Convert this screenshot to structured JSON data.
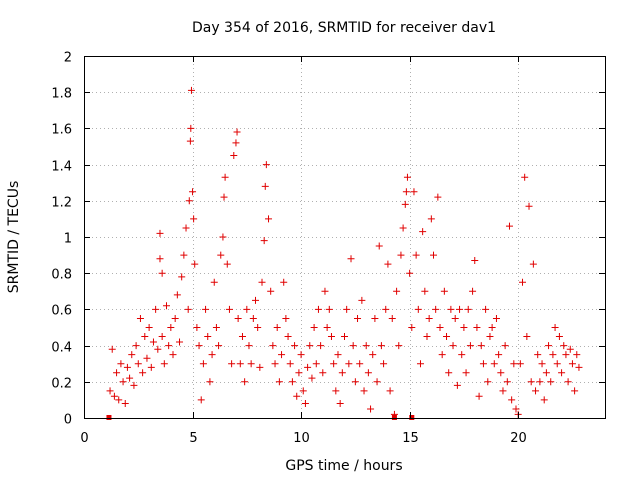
{
  "chart_data": {
    "type": "scatter",
    "title": "Day 354 of 2016, SRMTID for receiver dav1",
    "xlabel": "GPS time / hours",
    "ylabel": "SRMTID / TECUs",
    "xlim": [
      0,
      24
    ],
    "ylim": [
      0,
      2
    ],
    "xticks": [
      0,
      5,
      10,
      15,
      20
    ],
    "yticks": [
      0,
      0.2,
      0.4,
      0.6,
      0.8,
      1,
      1.2,
      1.4,
      1.6,
      1.8,
      2
    ],
    "xtick_labels": [
      "0",
      "5",
      "10",
      "15",
      "20"
    ],
    "ytick_labels": [
      "0",
      "0.2",
      "0.4",
      "0.6",
      "0.8",
      "1",
      "1.2",
      "1.4",
      "1.6",
      "1.8",
      "2"
    ],
    "grid": true,
    "marker": "plus",
    "color": "#e00000",
    "zero_markers": [
      1.15,
      14.3,
      15.1
    ],
    "series": [
      {
        "name": "SRMTID",
        "points": [
          [
            1.2,
            0.15
          ],
          [
            1.3,
            0.38
          ],
          [
            1.4,
            0.12
          ],
          [
            1.5,
            0.25
          ],
          [
            1.6,
            0.1
          ],
          [
            1.7,
            0.3
          ],
          [
            1.8,
            0.2
          ],
          [
            1.9,
            0.08
          ],
          [
            2.0,
            0.28
          ],
          [
            2.1,
            0.22
          ],
          [
            2.2,
            0.35
          ],
          [
            2.3,
            0.18
          ],
          [
            2.4,
            0.4
          ],
          [
            2.5,
            0.3
          ],
          [
            2.6,
            0.55
          ],
          [
            2.7,
            0.25
          ],
          [
            2.8,
            0.45
          ],
          [
            2.9,
            0.33
          ],
          [
            3.0,
            0.5
          ],
          [
            3.1,
            0.28
          ],
          [
            3.2,
            0.42
          ],
          [
            3.3,
            0.6
          ],
          [
            3.4,
            0.38
          ],
          [
            3.5,
            1.02
          ],
          [
            3.5,
            0.88
          ],
          [
            3.6,
            0.8
          ],
          [
            3.6,
            0.45
          ],
          [
            3.7,
            0.3
          ],
          [
            3.8,
            0.62
          ],
          [
            3.9,
            0.4
          ],
          [
            4.0,
            0.5
          ],
          [
            4.1,
            0.35
          ],
          [
            4.2,
            0.55
          ],
          [
            4.3,
            0.68
          ],
          [
            4.4,
            0.42
          ],
          [
            4.5,
            0.78
          ],
          [
            4.6,
            0.9
          ],
          [
            4.7,
            1.05
          ],
          [
            4.8,
            0.6
          ],
          [
            4.85,
            1.2
          ],
          [
            4.9,
            1.53
          ],
          [
            4.92,
            1.6
          ],
          [
            4.95,
            1.81
          ],
          [
            5.0,
            1.25
          ],
          [
            5.05,
            1.1
          ],
          [
            5.1,
            0.85
          ],
          [
            5.2,
            0.5
          ],
          [
            5.3,
            0.4
          ],
          [
            5.4,
            0.1
          ],
          [
            5.5,
            0.3
          ],
          [
            5.6,
            0.6
          ],
          [
            5.7,
            0.45
          ],
          [
            5.8,
            0.2
          ],
          [
            5.9,
            0.35
          ],
          [
            6.0,
            0.75
          ],
          [
            6.1,
            0.5
          ],
          [
            6.2,
            0.4
          ],
          [
            6.3,
            0.9
          ],
          [
            6.4,
            1.0
          ],
          [
            6.45,
            1.22
          ],
          [
            6.5,
            1.33
          ],
          [
            6.6,
            0.85
          ],
          [
            6.7,
            0.6
          ],
          [
            6.8,
            0.3
          ],
          [
            6.9,
            1.45
          ],
          [
            7.0,
            1.52
          ],
          [
            7.05,
            1.58
          ],
          [
            7.1,
            0.55
          ],
          [
            7.2,
            0.3
          ],
          [
            7.3,
            0.45
          ],
          [
            7.4,
            0.2
          ],
          [
            7.5,
            0.6
          ],
          [
            7.6,
            0.4
          ],
          [
            7.7,
            0.3
          ],
          [
            7.8,
            0.55
          ],
          [
            7.9,
            0.65
          ],
          [
            8.0,
            0.5
          ],
          [
            8.1,
            0.28
          ],
          [
            8.2,
            0.75
          ],
          [
            8.3,
            0.98
          ],
          [
            8.35,
            1.28
          ],
          [
            8.4,
            1.4
          ],
          [
            8.5,
            1.1
          ],
          [
            8.6,
            0.7
          ],
          [
            8.7,
            0.4
          ],
          [
            8.8,
            0.3
          ],
          [
            8.9,
            0.5
          ],
          [
            9.0,
            0.2
          ],
          [
            9.1,
            0.35
          ],
          [
            9.2,
            0.75
          ],
          [
            9.3,
            0.55
          ],
          [
            9.4,
            0.45
          ],
          [
            9.5,
            0.3
          ],
          [
            9.6,
            0.2
          ],
          [
            9.7,
            0.4
          ],
          [
            9.8,
            0.12
          ],
          [
            9.9,
            0.25
          ],
          [
            10.0,
            0.35
          ],
          [
            10.1,
            0.15
          ],
          [
            10.2,
            0.08
          ],
          [
            10.3,
            0.28
          ],
          [
            10.4,
            0.4
          ],
          [
            10.5,
            0.22
          ],
          [
            10.6,
            0.5
          ],
          [
            10.7,
            0.3
          ],
          [
            10.8,
            0.6
          ],
          [
            10.9,
            0.4
          ],
          [
            11.0,
            0.25
          ],
          [
            11.1,
            0.7
          ],
          [
            11.2,
            0.5
          ],
          [
            11.3,
            0.6
          ],
          [
            11.4,
            0.45
          ],
          [
            11.5,
            0.3
          ],
          [
            11.6,
            0.15
          ],
          [
            11.7,
            0.35
          ],
          [
            11.8,
            0.08
          ],
          [
            11.9,
            0.25
          ],
          [
            12.0,
            0.45
          ],
          [
            12.1,
            0.6
          ],
          [
            12.2,
            0.3
          ],
          [
            12.3,
            0.88
          ],
          [
            12.4,
            0.4
          ],
          [
            12.5,
            0.2
          ],
          [
            12.6,
            0.55
          ],
          [
            12.7,
            0.3
          ],
          [
            12.8,
            0.65
          ],
          [
            12.9,
            0.15
          ],
          [
            13.0,
            0.4
          ],
          [
            13.1,
            0.25
          ],
          [
            13.2,
            0.05
          ],
          [
            13.3,
            0.35
          ],
          [
            13.4,
            0.55
          ],
          [
            13.5,
            0.2
          ],
          [
            13.6,
            0.95
          ],
          [
            13.7,
            0.4
          ],
          [
            13.8,
            0.3
          ],
          [
            13.9,
            0.6
          ],
          [
            14.0,
            0.85
          ],
          [
            14.1,
            0.15
          ],
          [
            14.2,
            0.55
          ],
          [
            14.3,
            0.02
          ],
          [
            14.4,
            0.7
          ],
          [
            14.5,
            0.4
          ],
          [
            14.6,
            0.9
          ],
          [
            14.7,
            1.05
          ],
          [
            14.8,
            1.18
          ],
          [
            14.85,
            1.25
          ],
          [
            14.9,
            1.33
          ],
          [
            15.0,
            0.8
          ],
          [
            15.1,
            0.5
          ],
          [
            15.2,
            1.25
          ],
          [
            15.3,
            0.9
          ],
          [
            15.4,
            0.6
          ],
          [
            15.5,
            0.3
          ],
          [
            15.6,
            1.03
          ],
          [
            15.7,
            0.7
          ],
          [
            15.8,
            0.45
          ],
          [
            15.9,
            0.55
          ],
          [
            16.0,
            1.1
          ],
          [
            16.1,
            0.9
          ],
          [
            16.2,
            0.6
          ],
          [
            16.3,
            1.22
          ],
          [
            16.4,
            0.5
          ],
          [
            16.5,
            0.35
          ],
          [
            16.6,
            0.7
          ],
          [
            16.7,
            0.45
          ],
          [
            16.8,
            0.25
          ],
          [
            16.9,
            0.6
          ],
          [
            17.0,
            0.4
          ],
          [
            17.1,
            0.55
          ],
          [
            17.2,
            0.18
          ],
          [
            17.3,
            0.6
          ],
          [
            17.4,
            0.35
          ],
          [
            17.5,
            0.5
          ],
          [
            17.6,
            0.25
          ],
          [
            17.7,
            0.6
          ],
          [
            17.8,
            0.4
          ],
          [
            17.9,
            0.7
          ],
          [
            18.0,
            0.87
          ],
          [
            18.1,
            0.5
          ],
          [
            18.2,
            0.12
          ],
          [
            18.3,
            0.4
          ],
          [
            18.4,
            0.3
          ],
          [
            18.5,
            0.6
          ],
          [
            18.6,
            0.2
          ],
          [
            18.7,
            0.45
          ],
          [
            18.8,
            0.5
          ],
          [
            18.9,
            0.3
          ],
          [
            19.0,
            0.55
          ],
          [
            19.1,
            0.35
          ],
          [
            19.2,
            0.25
          ],
          [
            19.3,
            0.15
          ],
          [
            19.4,
            0.4
          ],
          [
            19.5,
            0.2
          ],
          [
            19.6,
            1.06
          ],
          [
            19.7,
            0.1
          ],
          [
            19.8,
            0.3
          ],
          [
            19.9,
            0.05
          ],
          [
            20.0,
            0.02
          ],
          [
            20.1,
            0.3
          ],
          [
            20.2,
            0.75
          ],
          [
            20.3,
            1.33
          ],
          [
            20.4,
            0.45
          ],
          [
            20.5,
            1.17
          ],
          [
            20.6,
            0.2
          ],
          [
            20.7,
            0.85
          ],
          [
            20.8,
            0.15
          ],
          [
            20.9,
            0.35
          ],
          [
            21.0,
            0.2
          ],
          [
            21.1,
            0.3
          ],
          [
            21.2,
            0.1
          ],
          [
            21.3,
            0.25
          ],
          [
            21.4,
            0.4
          ],
          [
            21.5,
            0.2
          ],
          [
            21.6,
            0.35
          ],
          [
            21.7,
            0.5
          ],
          [
            21.8,
            0.3
          ],
          [
            21.9,
            0.45
          ],
          [
            22.0,
            0.25
          ],
          [
            22.1,
            0.4
          ],
          [
            22.2,
            0.35
          ],
          [
            22.3,
            0.2
          ],
          [
            22.4,
            0.38
          ],
          [
            22.5,
            0.3
          ],
          [
            22.6,
            0.15
          ],
          [
            22.7,
            0.35
          ],
          [
            22.8,
            0.28
          ]
        ]
      }
    ]
  }
}
